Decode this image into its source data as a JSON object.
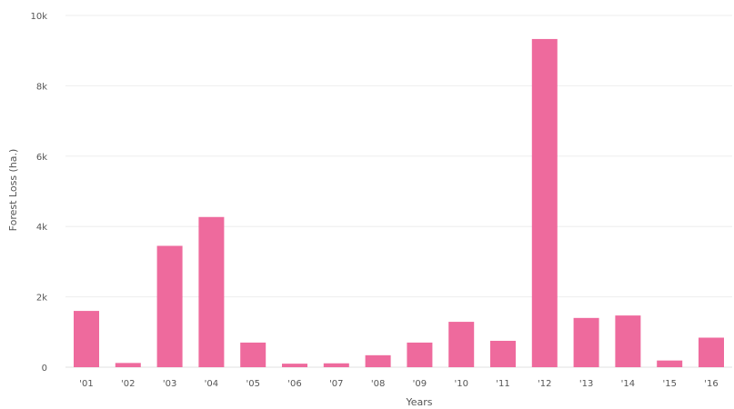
{
  "chart_data": {
    "type": "bar",
    "title": "",
    "xlabel": "Years",
    "ylabel": "Forest Loss (ha.)",
    "categories": [
      "'01",
      "'02",
      "'03",
      "'04",
      "'05",
      "'06",
      "'07",
      "'08",
      "'09",
      "'10",
      "'11",
      "'12",
      "'13",
      "'14",
      "'15",
      "'16"
    ],
    "values": [
      1600,
      120,
      3450,
      4270,
      700,
      100,
      110,
      340,
      700,
      1290,
      750,
      9330,
      1400,
      1470,
      190,
      840
    ],
    "ylim": [
      0,
      10000
    ],
    "yticks": [
      0,
      2000,
      4000,
      6000,
      8000,
      10000
    ],
    "ytick_labels": [
      "0",
      "2k",
      "4k",
      "6k",
      "8k",
      "10k"
    ],
    "grid": true,
    "bar_color": "#ee6a9d"
  }
}
